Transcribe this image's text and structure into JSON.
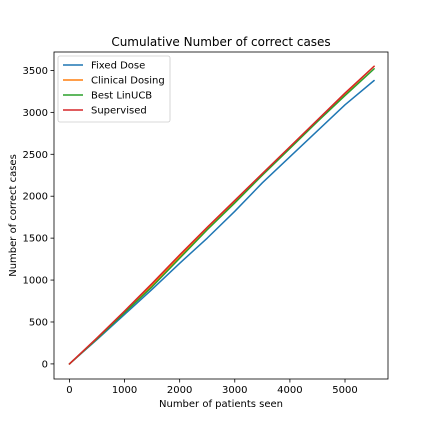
{
  "chart_data": {
    "type": "line",
    "title": "Cumulative Number of correct cases",
    "xlabel": "Number of patients seen",
    "ylabel": "Number of correct cases",
    "xlim": [
      -280,
      5780
    ],
    "ylim": [
      -180,
      3720
    ],
    "xticks": [
      0,
      1000,
      2000,
      3000,
      4000,
      5000
    ],
    "yticks": [
      0,
      500,
      1000,
      1500,
      2000,
      2500,
      3000,
      3500
    ],
    "grid": false,
    "legend_position": "top-left",
    "series": [
      {
        "name": "Fixed Dose",
        "color": "#1f77b4",
        "x": [
          0,
          500,
          1000,
          1500,
          2000,
          2500,
          3000,
          3500,
          4000,
          4500,
          5000,
          5528
        ],
        "y": [
          0,
          290,
          590,
          890,
          1200,
          1500,
          1820,
          2160,
          2470,
          2780,
          3090,
          3380
        ]
      },
      {
        "name": "Clinical Dosing",
        "color": "#ff7f0e",
        "x": [
          0,
          500,
          1000,
          1500,
          2000,
          2500,
          3000,
          3500,
          4000,
          4500,
          5000,
          5528
        ],
        "y": [
          0,
          300,
          620,
          940,
          1280,
          1610,
          1930,
          2260,
          2580,
          2900,
          3220,
          3550
        ]
      },
      {
        "name": "Best LinUCB",
        "color": "#2ca02c",
        "x": [
          0,
          500,
          1000,
          1500,
          2000,
          2500,
          3000,
          3500,
          4000,
          4500,
          5000,
          5528
        ],
        "y": [
          0,
          300,
          610,
          920,
          1260,
          1600,
          1920,
          2250,
          2570,
          2890,
          3200,
          3520
        ]
      },
      {
        "name": "Supervised",
        "color": "#d62728",
        "x": [
          0,
          500,
          1000,
          1500,
          2000,
          2500,
          3000,
          3500,
          4000,
          4500,
          5000,
          5528
        ],
        "y": [
          0,
          310,
          630,
          960,
          1300,
          1630,
          1950,
          2270,
          2590,
          2910,
          3230,
          3550
        ]
      }
    ]
  }
}
